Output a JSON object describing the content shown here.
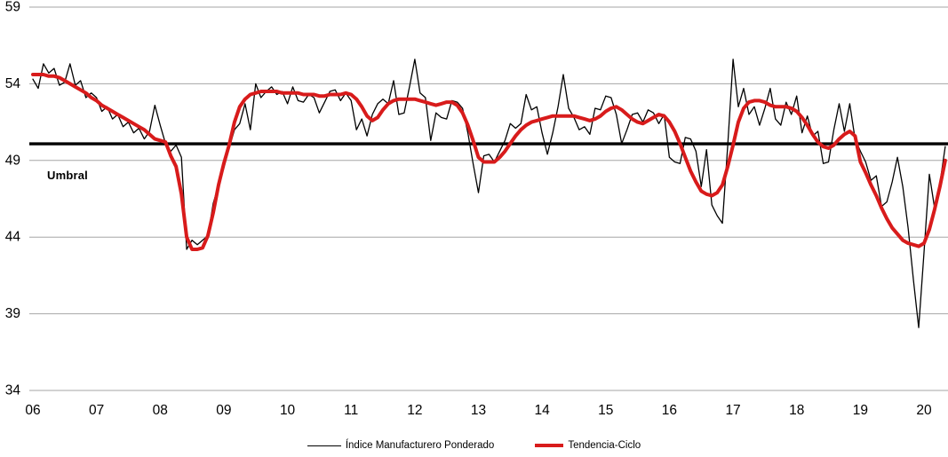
{
  "chart_data": {
    "type": "line",
    "title": "",
    "xlabel": "",
    "ylabel": "",
    "ylim": [
      34,
      59
    ],
    "y_ticks": [
      34,
      39,
      44,
      49,
      54,
      59
    ],
    "x_tick_labels": [
      "06",
      "07",
      "08",
      "09",
      "10",
      "11",
      "12",
      "13",
      "14",
      "15",
      "16",
      "17",
      "18",
      "19",
      "20"
    ],
    "x_frequency": "monthly",
    "x_start": "2006-01",
    "grid": "horizontal",
    "legend_position": "bottom-center",
    "threshold": {
      "label": "Umbral",
      "value": 50
    },
    "colors": {
      "index_line": "#000000",
      "trend_line": "#d81b1b",
      "gridline": "#a6a6a6",
      "threshold_line": "#000000"
    },
    "series": [
      {
        "name": "Índice Manufacturero Ponderado",
        "color": "#000000",
        "width": 1.3,
        "values": [
          54.3,
          53.7,
          55.3,
          54.7,
          55.0,
          53.9,
          54.1,
          55.3,
          53.9,
          54.2,
          53.1,
          53.4,
          53.1,
          52.2,
          52.5,
          51.7,
          52.0,
          51.2,
          51.5,
          50.8,
          51.1,
          50.4,
          50.9,
          52.6,
          51.3,
          50.1,
          49.6,
          50.0,
          49.2,
          43.2,
          43.8,
          43.5,
          43.8,
          44.1,
          46.2,
          47.4,
          48.5,
          49.8,
          51.0,
          51.4,
          52.7,
          51.0,
          54.0,
          53.1,
          53.5,
          53.8,
          53.3,
          53.5,
          52.7,
          53.8,
          52.9,
          52.8,
          53.3,
          53.1,
          52.1,
          52.8,
          53.5,
          53.6,
          52.9,
          53.4,
          52.9,
          51.0,
          51.7,
          50.6,
          52.0,
          52.7,
          53.0,
          52.7,
          54.2,
          52.0,
          52.1,
          53.8,
          55.6,
          53.4,
          53.1,
          50.3,
          52.1,
          51.8,
          51.7,
          52.9,
          52.8,
          52.4,
          50.8,
          48.8,
          46.9,
          49.3,
          49.4,
          48.9,
          49.6,
          50.3,
          51.4,
          51.1,
          51.4,
          53.3,
          52.3,
          52.5,
          50.8,
          49.4,
          50.8,
          52.5,
          54.6,
          52.4,
          51.8,
          51.0,
          51.2,
          50.7,
          52.4,
          52.3,
          53.2,
          53.1,
          52.0,
          50.1,
          51.0,
          52.0,
          52.1,
          51.5,
          52.3,
          52.1,
          51.4,
          52.0,
          49.2,
          48.9,
          48.8,
          50.5,
          50.4,
          49.6,
          47.3,
          49.7,
          46.1,
          45.4,
          44.9,
          50.0,
          55.6,
          52.5,
          53.7,
          52.0,
          52.5,
          51.3,
          52.4,
          53.7,
          51.7,
          51.3,
          52.8,
          52.0,
          53.2,
          50.8,
          51.9,
          50.6,
          50.9,
          48.8,
          48.9,
          51.0,
          52.7,
          50.9,
          52.7,
          50.4,
          49.6,
          48.9,
          47.7,
          48.0,
          46.0,
          46.3,
          47.6,
          49.2,
          47.3,
          44.6,
          41.2,
          38.1,
          43.0,
          48.1,
          45.9,
          47.5,
          49.9
        ]
      },
      {
        "name": "Tendencia-Ciclo",
        "color": "#d81b1b",
        "width": 4,
        "values": [
          54.6,
          54.6,
          54.6,
          54.5,
          54.5,
          54.4,
          54.2,
          54.0,
          53.8,
          53.6,
          53.4,
          53.1,
          52.9,
          52.6,
          52.4,
          52.2,
          52.0,
          51.8,
          51.6,
          51.4,
          51.2,
          51.0,
          50.7,
          50.4,
          50.3,
          50.2,
          49.3,
          48.6,
          46.8,
          44.0,
          43.2,
          43.2,
          43.3,
          44.1,
          45.6,
          47.4,
          48.8,
          50.0,
          51.5,
          52.5,
          53.0,
          53.3,
          53.4,
          53.5,
          53.5,
          53.5,
          53.5,
          53.4,
          53.4,
          53.4,
          53.4,
          53.3,
          53.3,
          53.3,
          53.2,
          53.2,
          53.3,
          53.3,
          53.3,
          53.4,
          53.3,
          53.0,
          52.5,
          51.9,
          51.6,
          51.8,
          52.3,
          52.7,
          52.9,
          53.0,
          53.0,
          53.0,
          53.0,
          52.9,
          52.8,
          52.7,
          52.6,
          52.7,
          52.8,
          52.8,
          52.6,
          52.1,
          51.3,
          50.3,
          49.2,
          48.9,
          48.9,
          48.9,
          49.2,
          49.6,
          50.1,
          50.6,
          51.0,
          51.3,
          51.5,
          51.6,
          51.7,
          51.8,
          51.9,
          51.9,
          51.9,
          51.9,
          51.9,
          51.8,
          51.7,
          51.6,
          51.7,
          51.9,
          52.2,
          52.4,
          52.5,
          52.3,
          52.0,
          51.7,
          51.5,
          51.4,
          51.6,
          51.8,
          52.0,
          51.9,
          51.5,
          50.9,
          50.1,
          49.2,
          48.3,
          47.6,
          47.0,
          46.8,
          46.7,
          46.9,
          47.4,
          48.6,
          50.0,
          51.5,
          52.4,
          52.8,
          52.9,
          52.9,
          52.8,
          52.6,
          52.5,
          52.5,
          52.5,
          52.4,
          52.2,
          51.8,
          51.3,
          50.7,
          50.2,
          49.9,
          49.8,
          50.0,
          50.4,
          50.7,
          50.9,
          50.6,
          48.9,
          48.2,
          47.4,
          46.7,
          45.9,
          45.2,
          44.6,
          44.2,
          43.8,
          43.6,
          43.5,
          43.4,
          43.6,
          44.5,
          45.8,
          47.3,
          49.0
        ]
      }
    ]
  },
  "legend": {
    "items": [
      {
        "label": "Índice Manufacturero Ponderado"
      },
      {
        "label": "Tendencia-Ciclo"
      }
    ]
  },
  "annotations": {
    "umbral_label": "Umbral"
  }
}
